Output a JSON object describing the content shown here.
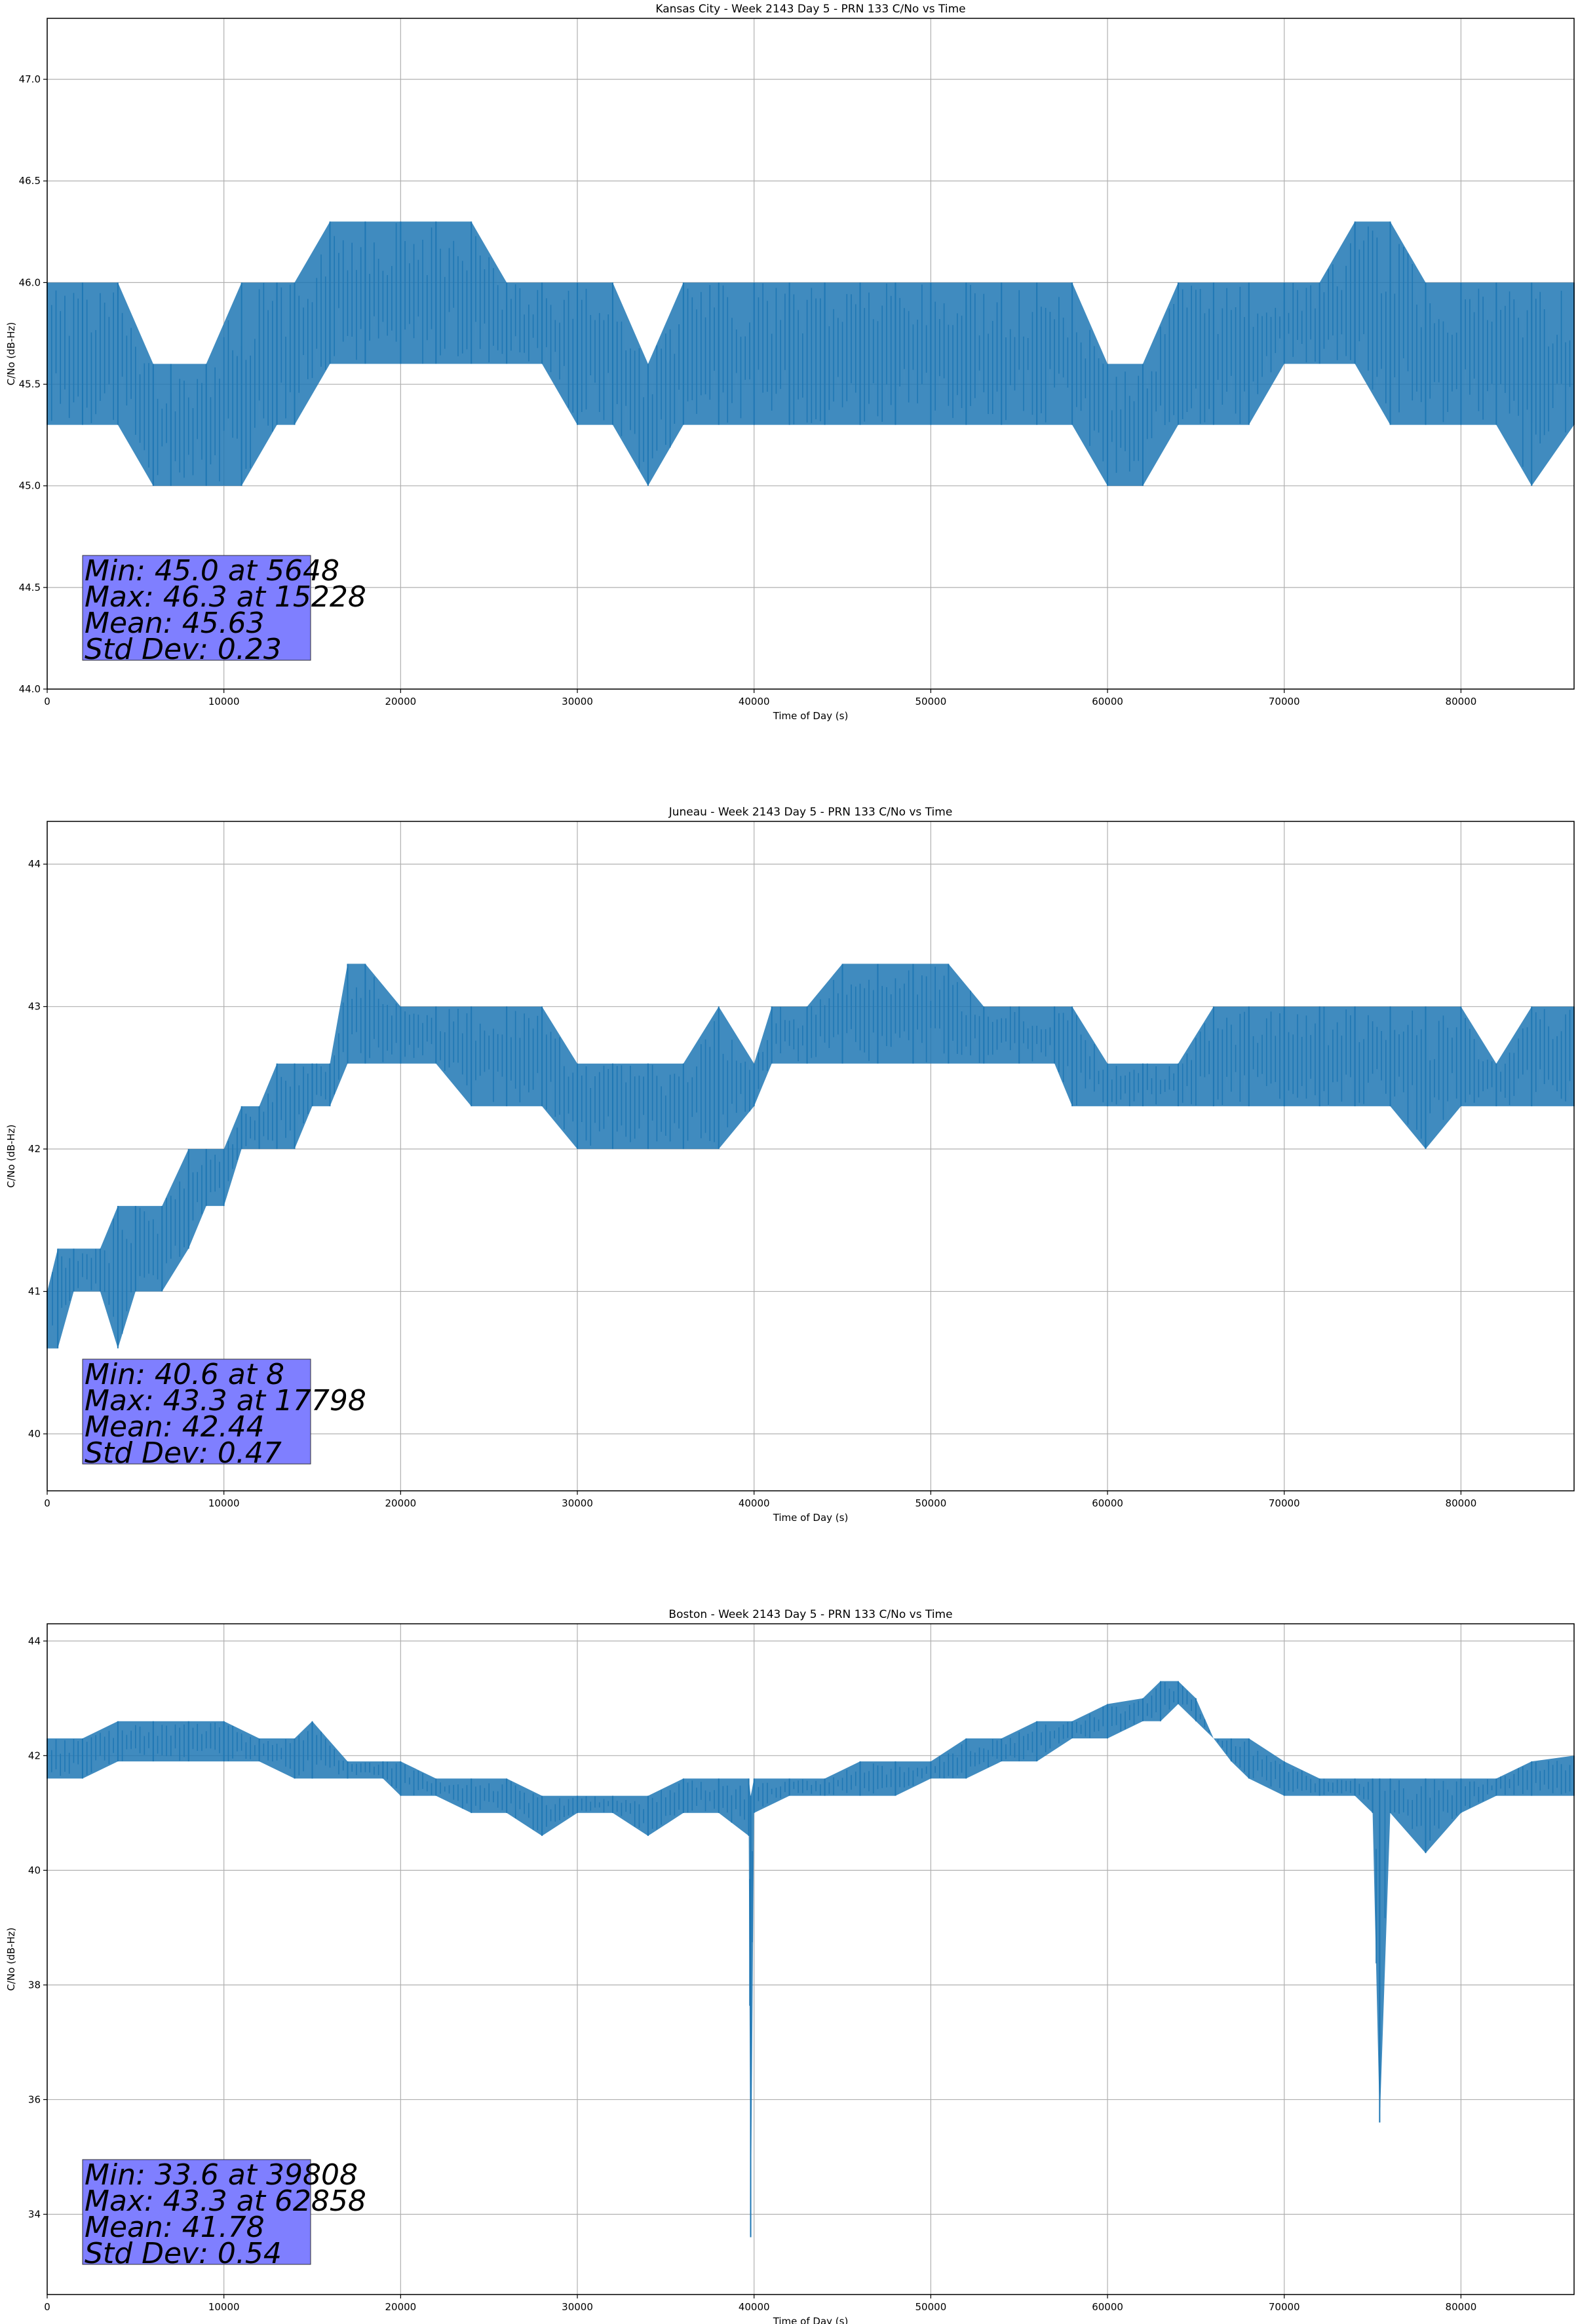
{
  "chart_data": [
    {
      "type": "line",
      "title": "Kansas City - Week 2143 Day 5 - PRN 133 C/No vs Time",
      "xlabel": "Time of Day (s)",
      "ylabel": "C/No (dB-Hz)",
      "xlim": [
        0,
        86400
      ],
      "ylim": [
        44.0,
        47.3
      ],
      "xticks": [
        0,
        10000,
        20000,
        30000,
        40000,
        50000,
        60000,
        70000,
        80000
      ],
      "xtick_labels": [
        "0",
        "10000",
        "20000",
        "30000",
        "40000",
        "50000",
        "60000",
        "70000",
        "80000"
      ],
      "yticks": [
        44.0,
        44.5,
        45.0,
        45.5,
        46.0,
        46.5,
        47.0
      ],
      "ytick_labels": [
        "44.0",
        "44.5",
        "45.0",
        "45.5",
        "46.0",
        "46.5",
        "47.0"
      ],
      "grid": true,
      "line_color": "#1f77b4",
      "series": [
        {
          "x": [
            0,
            2000,
            4000,
            6000,
            7000,
            9000,
            11000,
            13000,
            14000,
            16000,
            18000,
            20000,
            22000,
            24000,
            26000,
            28000,
            30000,
            32000,
            34000,
            36000,
            38000,
            40000,
            42000,
            44000,
            46000,
            48000,
            50000,
            52000,
            54000,
            56000,
            58000,
            60000,
            62000,
            64000,
            66000,
            68000,
            70000,
            72000,
            74000,
            76000,
            78000,
            80000,
            82000,
            84000,
            86400
          ],
          "ymin": [
            45.3,
            45.3,
            45.3,
            45.0,
            45.0,
            45.0,
            45.0,
            45.3,
            45.3,
            45.6,
            45.6,
            45.6,
            45.6,
            45.6,
            45.6,
            45.6,
            45.3,
            45.3,
            45.0,
            45.3,
            45.3,
            45.3,
            45.3,
            45.3,
            45.3,
            45.3,
            45.3,
            45.3,
            45.3,
            45.3,
            45.3,
            45.0,
            45.0,
            45.3,
            45.3,
            45.3,
            45.6,
            45.6,
            45.6,
            45.3,
            45.3,
            45.3,
            45.3,
            45.0,
            45.3
          ],
          "ymax": [
            46.0,
            46.0,
            46.0,
            45.6,
            45.6,
            45.6,
            46.0,
            46.0,
            46.0,
            46.3,
            46.3,
            46.3,
            46.3,
            46.3,
            46.0,
            46.0,
            46.0,
            46.0,
            45.6,
            46.0,
            46.0,
            46.0,
            46.0,
            46.0,
            46.0,
            46.0,
            46.0,
            46.0,
            46.0,
            46.0,
            46.0,
            45.6,
            45.6,
            46.0,
            46.0,
            46.0,
            46.0,
            46.0,
            46.3,
            46.3,
            46.0,
            46.0,
            46.0,
            46.0,
            46.0
          ]
        }
      ],
      "stats": [
        "Min: 45.0 at 5648",
        "Max: 46.3 at 15228",
        "Mean: 45.63",
        "Std Dev: 0.23"
      ]
    },
    {
      "type": "line",
      "title": "Juneau - Week 2143 Day 5 - PRN 133 C/No vs Time",
      "xlabel": "Time of Day (s)",
      "ylabel": "C/No (dB-Hz)",
      "xlim": [
        0,
        86400
      ],
      "ylim": [
        39.6,
        44.3
      ],
      "xticks": [
        0,
        10000,
        20000,
        30000,
        40000,
        50000,
        60000,
        70000,
        80000
      ],
      "xtick_labels": [
        "0",
        "10000",
        "20000",
        "30000",
        "40000",
        "50000",
        "60000",
        "70000",
        "80000"
      ],
      "yticks": [
        40,
        41,
        42,
        43,
        44
      ],
      "ytick_labels": [
        "40",
        "41",
        "42",
        "43",
        "44"
      ],
      "grid": true,
      "line_color": "#1f77b4",
      "series": [
        {
          "x": [
            0,
            600,
            1500,
            3000,
            4000,
            5000,
            6500,
            8000,
            9000,
            10000,
            11000,
            12000,
            13000,
            14000,
            15000,
            16000,
            17000,
            18000,
            20000,
            22000,
            24000,
            26000,
            28000,
            30000,
            32000,
            34000,
            36000,
            38000,
            40000,
            41000,
            43000,
            45000,
            47000,
            49000,
            51000,
            53000,
            55000,
            57000,
            58000,
            60000,
            62000,
            64000,
            66000,
            68000,
            70000,
            72000,
            74000,
            76000,
            78000,
            80000,
            82000,
            84000,
            86400
          ],
          "ymin": [
            40.6,
            40.6,
            41.0,
            41.0,
            40.6,
            41.0,
            41.0,
            41.3,
            41.6,
            41.6,
            42.0,
            42.0,
            42.0,
            42.0,
            42.3,
            42.3,
            42.6,
            42.6,
            42.6,
            42.6,
            42.3,
            42.3,
            42.3,
            42.0,
            42.0,
            42.0,
            42.0,
            42.0,
            42.3,
            42.6,
            42.6,
            42.6,
            42.6,
            42.6,
            42.6,
            42.6,
            42.6,
            42.6,
            42.3,
            42.3,
            42.3,
            42.3,
            42.3,
            42.3,
            42.3,
            42.3,
            42.3,
            42.3,
            42.0,
            42.3,
            42.3,
            42.3,
            42.3
          ],
          "ymax": [
            41.0,
            41.3,
            41.3,
            41.3,
            41.6,
            41.6,
            41.6,
            42.0,
            42.0,
            42.0,
            42.3,
            42.3,
            42.6,
            42.6,
            42.6,
            42.6,
            43.3,
            43.3,
            43.0,
            43.0,
            43.0,
            43.0,
            43.0,
            42.6,
            42.6,
            42.6,
            42.6,
            43.0,
            42.6,
            43.0,
            43.0,
            43.3,
            43.3,
            43.3,
            43.3,
            43.0,
            43.0,
            43.0,
            43.0,
            42.6,
            42.6,
            42.6,
            43.0,
            43.0,
            43.0,
            43.0,
            43.0,
            43.0,
            43.0,
            43.0,
            42.6,
            43.0,
            43.0
          ]
        }
      ],
      "stats": [
        "Min: 40.6 at 8",
        "Max: 43.3 at 17798",
        "Mean: 42.44",
        "Std Dev: 0.47"
      ]
    },
    {
      "type": "line",
      "title": "Boston - Week 2143 Day 5 - PRN 133 C/No vs Time",
      "xlabel": "Time of Day (s)",
      "ylabel": "C/No (dB-Hz)",
      "xlim": [
        0,
        86400
      ],
      "ylim": [
        32.6,
        44.3
      ],
      "xticks": [
        0,
        10000,
        20000,
        30000,
        40000,
        50000,
        60000,
        70000,
        80000
      ],
      "xtick_labels": [
        "0",
        "10000",
        "20000",
        "30000",
        "40000",
        "50000",
        "60000",
        "70000",
        "80000"
      ],
      "yticks": [
        34,
        36,
        38,
        40,
        42,
        44
      ],
      "ytick_labels": [
        "34",
        "36",
        "38",
        "40",
        "42",
        "44"
      ],
      "grid": true,
      "line_color": "#1f77b4",
      "series": [
        {
          "x": [
            0,
            2000,
            4000,
            6000,
            8000,
            10000,
            12000,
            14000,
            15000,
            17000,
            19000,
            20000,
            22000,
            24000,
            26000,
            28000,
            30000,
            32000,
            34000,
            36000,
            38000,
            39700,
            39808,
            40000,
            42000,
            44000,
            46000,
            48000,
            50000,
            52000,
            54000,
            56000,
            58000,
            60000,
            62000,
            63000,
            64000,
            65000,
            66000,
            67000,
            68000,
            70000,
            72000,
            74000,
            75000,
            75400,
            76000,
            78000,
            80000,
            82000,
            84000,
            86400
          ],
          "ymin": [
            41.6,
            41.6,
            41.9,
            41.9,
            41.9,
            41.9,
            41.9,
            41.6,
            41.6,
            41.6,
            41.6,
            41.3,
            41.3,
            41.0,
            41.0,
            40.6,
            41.0,
            41.0,
            40.6,
            41.0,
            41.0,
            40.6,
            33.6,
            41.0,
            41.3,
            41.3,
            41.3,
            41.3,
            41.6,
            41.6,
            41.9,
            41.9,
            42.3,
            42.3,
            42.6,
            42.6,
            42.9,
            42.6,
            42.3,
            41.9,
            41.6,
            41.3,
            41.3,
            41.3,
            41.0,
            35.6,
            41.0,
            40.3,
            41.0,
            41.3,
            41.3,
            41.3
          ],
          "ymax": [
            42.3,
            42.3,
            42.6,
            42.6,
            42.6,
            42.6,
            42.3,
            42.3,
            42.6,
            41.9,
            41.9,
            41.9,
            41.6,
            41.6,
            41.6,
            41.3,
            41.3,
            41.3,
            41.3,
            41.6,
            41.6,
            41.6,
            41.3,
            41.6,
            41.6,
            41.6,
            41.9,
            41.9,
            41.9,
            42.3,
            42.3,
            42.6,
            42.6,
            42.9,
            43.0,
            43.3,
            43.3,
            43.0,
            42.3,
            42.3,
            42.3,
            41.9,
            41.6,
            41.6,
            41.6,
            41.6,
            41.6,
            41.6,
            41.6,
            41.6,
            41.9,
            42.0
          ]
        }
      ],
      "stats": [
        "Min: 33.6 at 39808",
        "Max: 43.3 at 62858",
        "Mean: 41.78",
        "Std Dev: 0.54"
      ]
    }
  ]
}
